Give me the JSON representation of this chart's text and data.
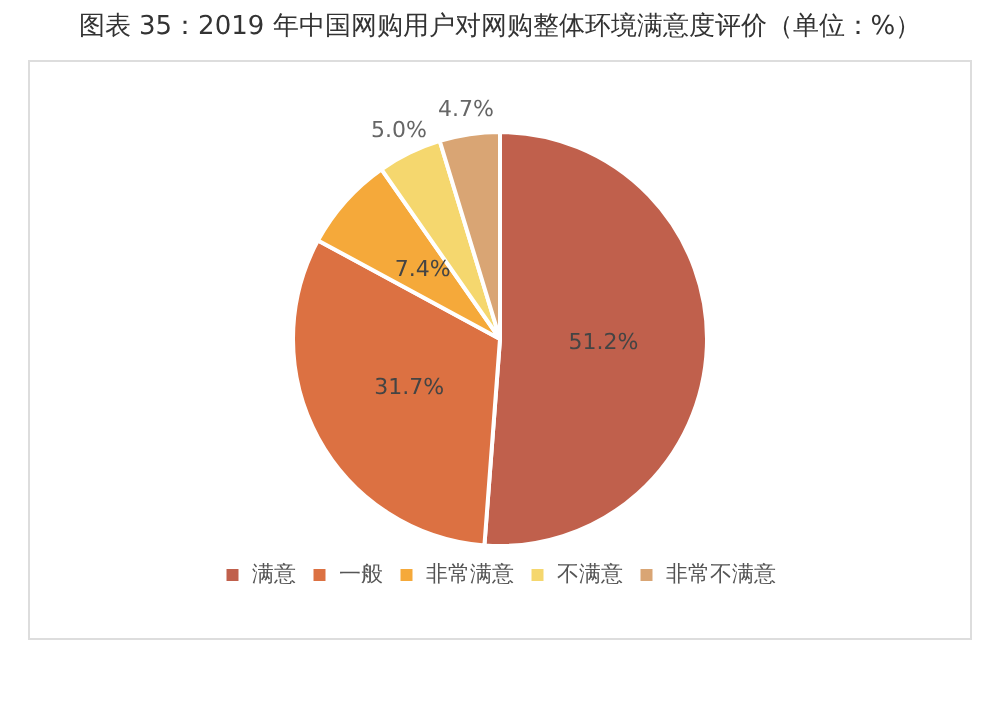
{
  "chart_data": {
    "type": "pie",
    "title": "图表 35：2019 年中国网购用户对网购整体环境满意度评价（单位：%）",
    "categories": [
      "满意",
      "一般",
      "非常满意",
      "不满意",
      "非常不满意"
    ],
    "values": [
      51.2,
      31.7,
      7.4,
      5.0,
      4.7
    ],
    "colors": [
      "#c0604c",
      "#dc7142",
      "#f5a93a",
      "#f5d76e",
      "#d9a574"
    ],
    "value_labels": [
      "51.2%",
      "31.7%",
      "7.4%",
      "5.0%",
      "4.7%"
    ],
    "legend": "bottom"
  }
}
